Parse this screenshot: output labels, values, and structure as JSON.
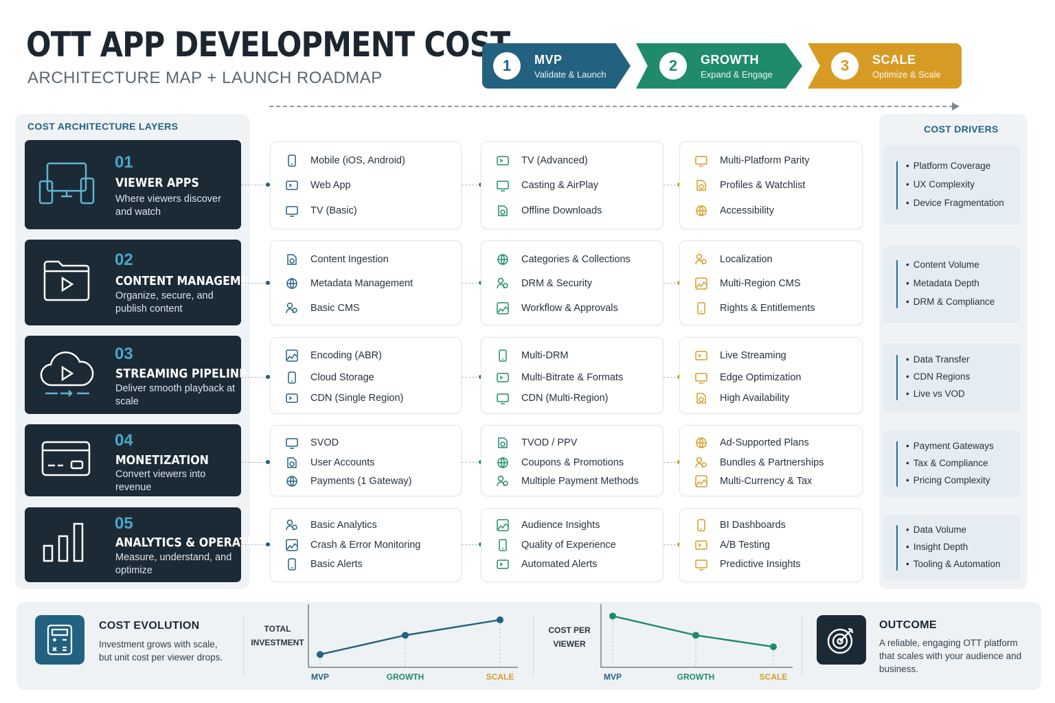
{
  "header": {
    "title": "OTT APP DEVELOPMENT COST",
    "subtitle": "ARCHITECTURE MAP + LAUNCH ROADMAP"
  },
  "phases": [
    {
      "num": "1",
      "name": "MVP",
      "desc": "Validate & Launch",
      "color": "#236181"
    },
    {
      "num": "2",
      "name": "GROWTH",
      "desc": "Expand & Engage",
      "color": "#1f8b6c"
    },
    {
      "num": "3",
      "name": "SCALE",
      "desc": "Optimize & Scale",
      "color": "#d79b25"
    }
  ],
  "layers_title": "COST ARCHITECTURE  LAYERS",
  "drivers_title": "COST DRIVERS",
  "layers": [
    {
      "num": "01",
      "name": "VIEWER APPS",
      "desc": "Where viewers discover and watch",
      "icon": "devices-icon",
      "mvp": [
        "Mobile (iOS, Android)",
        "Web App",
        "TV (Basic)"
      ],
      "growth": [
        "TV (Advanced)",
        "Casting & AirPlay",
        "Offline Downloads"
      ],
      "scale": [
        "Multi-Platform Parity",
        "Profiles & Watchlist",
        "Accessibility"
      ],
      "drivers": [
        "Platform Coverage",
        "UX Complexity",
        "Device Fragmentation"
      ]
    },
    {
      "num": "02",
      "name": "CONTENT MANAGEMENT",
      "desc": "Organize, secure, and publish content",
      "icon": "folder-play-icon",
      "mvp": [
        "Content Ingestion",
        "Metadata Management",
        "Basic CMS"
      ],
      "growth": [
        "Categories & Collections",
        "DRM & Security",
        "Workflow & Approvals"
      ],
      "scale": [
        "Localization",
        "Multi-Region CMS",
        "Rights & Entitlements"
      ],
      "drivers": [
        "Content Volume",
        "Metadata Depth",
        "DRM & Compliance"
      ]
    },
    {
      "num": "03",
      "name": "STREAMING PIPELINE",
      "desc": "Deliver smooth playback at scale",
      "icon": "cloud-play-icon",
      "mvp": [
        "Encoding (ABR)",
        "Cloud Storage",
        "CDN (Single Region)"
      ],
      "growth": [
        "Multi-DRM",
        "Multi-Bitrate & Formats",
        "CDN (Multi-Region)"
      ],
      "scale": [
        "Live Streaming",
        "Edge Optimization",
        "High Availability"
      ],
      "drivers": [
        "Data Transfer",
        "CDN Regions",
        "Live vs VOD"
      ]
    },
    {
      "num": "04",
      "name": "MONETIZATION",
      "desc": "Convert viewers into revenue",
      "icon": "credit-card-icon",
      "mvp": [
        "SVOD",
        "User Accounts",
        "Payments (1 Gateway)"
      ],
      "growth": [
        "TVOD / PPV",
        "Coupons & Promotions",
        "Multiple Payment Methods"
      ],
      "scale": [
        "Ad-Supported Plans",
        "Bundles & Partnerships",
        "Multi-Currency & Tax"
      ],
      "drivers": [
        "Payment Gateways",
        "Tax & Compliance",
        "Pricing Complexity"
      ]
    },
    {
      "num": "05",
      "name": "ANALYTICS & OPERATIONS",
      "desc": "Measure, understand, and optimize",
      "icon": "bar-chart-icon",
      "mvp": [
        "Basic Analytics",
        "Crash & Error Monitoring",
        "Basic Alerts"
      ],
      "growth": [
        "Audience Insights",
        "Quality of Experience",
        "Automated Alerts"
      ],
      "scale": [
        "BI Dashboards",
        "A/B Testing",
        "Predictive Insights"
      ],
      "drivers": [
        "Data Volume",
        "Insight Depth",
        "Tooling & Automation"
      ]
    }
  ],
  "bottom": {
    "evolution_title": "COST EVOLUTION",
    "evolution_desc": "Investment grows with scale, but unit cost per viewer drops.",
    "outcome_title": "OUTCOME",
    "outcome_desc": "A reliable, engaging OTT platform that scales with your audience and business."
  },
  "chart_data": [
    {
      "type": "line",
      "ylabel": "TOTAL INVESTMENT",
      "categories": [
        "MVP",
        "GROWTH",
        "SCALE"
      ],
      "values": [
        1,
        2.5,
        3.7
      ],
      "ylim": [
        0,
        4.5
      ],
      "color": "#236181",
      "category_colors": [
        "#236181",
        "#1f8b6c",
        "#d79b25"
      ]
    },
    {
      "type": "line",
      "ylabel": "COST PER VIEWER",
      "categories": [
        "MVP",
        "GROWTH",
        "SCALE"
      ],
      "values": [
        4,
        2.5,
        1.6
      ],
      "ylim": [
        0,
        4.5
      ],
      "color": "#1f8b6c",
      "category_colors": [
        "#236181",
        "#1f8b6c",
        "#d79b25"
      ]
    }
  ]
}
